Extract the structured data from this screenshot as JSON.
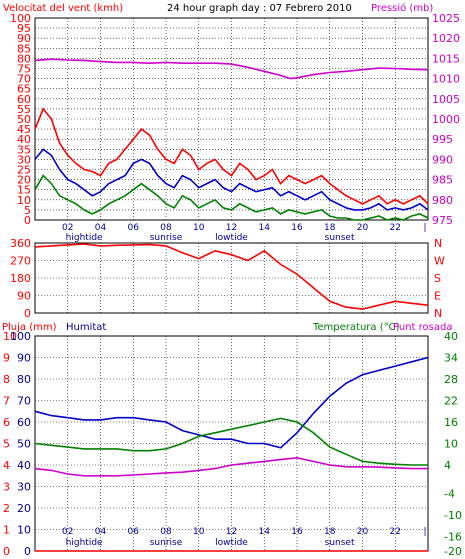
{
  "header": {
    "left": "Velocitat del vent (kmh)",
    "center": "24 hour graph day : 07 Febrero 2010",
    "right": "Pressió (mb)"
  },
  "colors": {
    "red": "#ff0000",
    "blue": "#0000cc",
    "green": "#008000",
    "magenta": "#cc00cc",
    "navy": "#000099",
    "grid": "#000000"
  },
  "x_labels": [
    "02",
    "04",
    "06",
    "08",
    "10",
    "12",
    "14",
    "16",
    "18",
    "20",
    "22",
    "|"
  ],
  "events_top": [
    "hightide",
    "sunrise",
    "lowtide",
    "sunset"
  ],
  "events_bottom": [
    "hightide",
    "sunrise",
    "lowtide",
    "sunset"
  ],
  "panel2": {
    "left_ticks": [
      "360",
      "270",
      "180",
      "90",
      "0"
    ],
    "right_ticks": [
      "N",
      "W",
      "S",
      "E",
      "N"
    ]
  },
  "panel3": {
    "left_title": "Pluja (mm)",
    "mid_title": "Humitat",
    "right_title_a": "Temperatura (°C)",
    "right_title_b": "Punt rosada"
  },
  "chart_data": [
    {
      "type": "line",
      "title": "24 hour graph day : 07 Febrero 2010",
      "xlim": [
        0,
        24
      ],
      "left_axis": {
        "label": "Velocitat del vent (kmh)",
        "ylim": [
          0,
          100
        ],
        "ticks": [
          0,
          5,
          10,
          15,
          20,
          25,
          30,
          35,
          40,
          45,
          50,
          55,
          60,
          65,
          70,
          75,
          80,
          85,
          90,
          95,
          100
        ]
      },
      "right_axis": {
        "label": "Pressió (mb)",
        "ylim": [
          975,
          1025
        ],
        "ticks": [
          975,
          980,
          985,
          990,
          995,
          1000,
          1005,
          1010,
          1015,
          1020,
          1025
        ]
      },
      "series": [
        {
          "axis": "right",
          "color": "#cc00cc",
          "x": [
            0,
            1,
            2,
            3,
            4,
            5,
            6,
            7,
            8,
            9,
            10,
            11,
            12,
            13,
            14,
            15,
            15.6,
            16,
            17,
            18,
            19,
            20,
            21,
            22,
            23,
            24
          ],
          "values": [
            1014.5,
            1014.8,
            1014.6,
            1014.5,
            1014.2,
            1014.0,
            1014.0,
            1013.8,
            1014.0,
            1013.8,
            1013.8,
            1013.8,
            1013.6,
            1012.8,
            1011.8,
            1010.8,
            1010.0,
            1010.2,
            1011.0,
            1011.5,
            1011.8,
            1012.2,
            1012.6,
            1012.5,
            1012.3,
            1012.2
          ]
        },
        {
          "axis": "left",
          "color": "#ff0000",
          "x": [
            0,
            0.5,
            1,
            1.5,
            2,
            2.5,
            3,
            3.5,
            4,
            4.5,
            5,
            5.5,
            6,
            6.5,
            7,
            7.5,
            8,
            8.5,
            9,
            9.5,
            10,
            10.5,
            11,
            11.5,
            12,
            12.5,
            13,
            13.5,
            14,
            14.5,
            15,
            15.5,
            16,
            16.5,
            17,
            17.5,
            18,
            18.5,
            19,
            19.5,
            20,
            20.5,
            21,
            21.5,
            22,
            22.5,
            23,
            23.5,
            24
          ],
          "values": [
            45,
            55,
            50,
            38,
            32,
            28,
            25,
            24,
            22,
            28,
            30,
            35,
            40,
            45,
            42,
            35,
            30,
            28,
            35,
            32,
            25,
            28,
            30,
            25,
            22,
            28,
            25,
            20,
            22,
            25,
            18,
            22,
            20,
            18,
            20,
            22,
            18,
            15,
            12,
            10,
            8,
            10,
            12,
            8,
            10,
            8,
            10,
            12,
            8
          ]
        },
        {
          "axis": "left",
          "color": "#0000cc",
          "x": [
            0,
            0.5,
            1,
            1.5,
            2,
            2.5,
            3,
            3.5,
            4,
            4.5,
            5,
            5.5,
            6,
            6.5,
            7,
            7.5,
            8,
            8.5,
            9,
            9.5,
            10,
            10.5,
            11,
            11.5,
            12,
            12.5,
            13,
            13.5,
            14,
            14.5,
            15,
            15.5,
            16,
            16.5,
            17,
            17.5,
            18,
            18.5,
            19,
            19.5,
            20,
            20.5,
            21,
            21.5,
            22,
            22.5,
            23,
            23.5,
            24
          ],
          "values": [
            30,
            35,
            32,
            25,
            20,
            18,
            15,
            12,
            14,
            18,
            20,
            22,
            28,
            30,
            28,
            22,
            18,
            16,
            22,
            20,
            16,
            18,
            20,
            16,
            14,
            18,
            16,
            14,
            15,
            16,
            12,
            14,
            12,
            10,
            12,
            14,
            10,
            8,
            6,
            5,
            5,
            6,
            8,
            5,
            6,
            5,
            6,
            8,
            5
          ]
        },
        {
          "axis": "left",
          "color": "#008000",
          "x": [
            0,
            0.5,
            1,
            1.5,
            2,
            2.5,
            3,
            3.5,
            4,
            4.5,
            5,
            5.5,
            6,
            6.5,
            7,
            7.5,
            8,
            8.5,
            9,
            9.5,
            10,
            10.5,
            11,
            11.5,
            12,
            12.5,
            13,
            13.5,
            14,
            14.5,
            15,
            15.5,
            16,
            16.5,
            17,
            17.5,
            18,
            18.5,
            19,
            19.5,
            20,
            20.5,
            21,
            21.5,
            22,
            22.5,
            23,
            23.5,
            24
          ],
          "values": [
            15,
            22,
            18,
            12,
            10,
            8,
            5,
            3,
            5,
            8,
            10,
            12,
            15,
            18,
            15,
            12,
            8,
            6,
            12,
            10,
            6,
            8,
            10,
            6,
            5,
            8,
            6,
            4,
            5,
            6,
            3,
            5,
            4,
            3,
            4,
            5,
            2,
            1,
            1,
            0,
            0,
            1,
            2,
            0,
            1,
            0,
            2,
            3,
            1
          ]
        }
      ]
    },
    {
      "type": "line",
      "xlim": [
        0,
        24
      ],
      "left_axis": {
        "ylim": [
          0,
          360
        ],
        "ticks": [
          0,
          90,
          180,
          270,
          360
        ]
      },
      "right_axis": {
        "ticks": [
          "N",
          "E",
          "S",
          "W",
          "N"
        ]
      },
      "series": [
        {
          "name": "Wind direction",
          "color": "#ff0000",
          "x": [
            0,
            1,
            2,
            3,
            4,
            5,
            6,
            7,
            8,
            9,
            10,
            11,
            12,
            13,
            14,
            15,
            16,
            17,
            18,
            19,
            20,
            21,
            22,
            23,
            24
          ],
          "values": [
            340,
            345,
            350,
            355,
            345,
            348,
            350,
            352,
            345,
            310,
            280,
            320,
            300,
            270,
            320,
            250,
            200,
            130,
            60,
            30,
            20,
            40,
            60,
            50,
            40
          ]
        }
      ]
    },
    {
      "type": "line",
      "xlim": [
        0,
        24
      ],
      "left_axis": {
        "label": "Pluja (mm)",
        "ylim": [
          0,
          100
        ],
        "ticks": [
          0,
          10,
          20,
          30,
          40,
          50,
          60,
          70,
          80,
          90,
          100
        ]
      },
      "right_axis": {
        "label": "Temperatura (°C)",
        "ylim": [
          -20,
          40
        ],
        "ticks": [
          -20,
          -16,
          -10,
          -4,
          4,
          10,
          16,
          22,
          28,
          34,
          40
        ]
      },
      "series": [
        {
          "name": "Humitat",
          "axis": "left",
          "color": "#0000cc",
          "x": [
            0,
            1,
            2,
            3,
            4,
            5,
            6,
            7,
            8,
            9,
            10,
            11,
            12,
            13,
            14,
            15,
            16,
            17,
            18,
            19,
            20,
            21,
            22,
            23,
            24
          ],
          "values": [
            65,
            63,
            62,
            61,
            61,
            62,
            62,
            61,
            60,
            56,
            54,
            52,
            52,
            50,
            50,
            48,
            55,
            64,
            72,
            78,
            82,
            84,
            86,
            88,
            90
          ]
        },
        {
          "name": "Temperatura",
          "axis": "right",
          "color": "#008000",
          "x": [
            0,
            1,
            2,
            3,
            4,
            5,
            6,
            7,
            8,
            9,
            10,
            11,
            12,
            13,
            14,
            15,
            16,
            17,
            18,
            19,
            20,
            21,
            22,
            23,
            24
          ],
          "values": [
            10,
            9.5,
            9,
            8.5,
            8.5,
            8.5,
            8,
            8,
            8.5,
            10,
            12,
            13,
            14,
            15,
            16,
            17,
            16,
            13,
            9,
            7,
            5,
            4.5,
            4.2,
            4,
            4
          ]
        },
        {
          "name": "Punt rosada",
          "axis": "right",
          "color": "#cc00cc",
          "x": [
            0,
            1,
            2,
            3,
            4,
            5,
            6,
            7,
            8,
            9,
            10,
            11,
            12,
            13,
            14,
            15,
            16,
            17,
            18,
            19,
            20,
            21,
            22,
            23,
            24
          ],
          "values": [
            3,
            2.5,
            1.5,
            1,
            1,
            1,
            1.2,
            1.5,
            1.8,
            2,
            2.5,
            3,
            4,
            4.5,
            5,
            5.5,
            6,
            5,
            4,
            3.5,
            3.5,
            3.4,
            3.2,
            3.0,
            3.0
          ]
        },
        {
          "name": "Pluja",
          "axis": "left",
          "color": "#ff0000",
          "x": [
            0,
            24
          ],
          "values": [
            0,
            0
          ]
        }
      ]
    }
  ]
}
